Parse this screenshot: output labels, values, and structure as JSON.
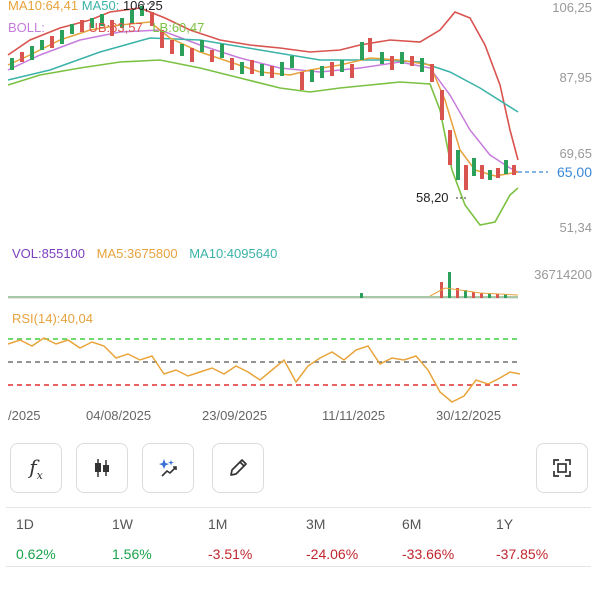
{
  "legend_price": {
    "ma10": "MA10:64,41",
    "ma50": "MA50:",
    "high_marker": "106,25",
    "boll": "BOLL:",
    "ub": "UB:63,57",
    "lb": "LB:60,47"
  },
  "price_axis": [
    "106,25",
    "87,95",
    "69,65",
    "65,00",
    "51,34"
  ],
  "low_marker": "58,20",
  "volume_legend": {
    "vol": "VOL:855100",
    "ma5": "MA5:3675800",
    "ma10": "MA10:4095640"
  },
  "volume_axis": "36714200",
  "rsi_legend": "RSI(14):40,04",
  "dates": [
    "/2025",
    "04/08/2025",
    "23/09/2025",
    "11/11/2025",
    "30/12/2025"
  ],
  "toolbar": [
    {
      "name": "indicator-fx-icon",
      "glyph": "fx"
    },
    {
      "name": "candlestick-icon",
      "glyph": "candles"
    },
    {
      "name": "ai-sparkle-icon",
      "glyph": "sparkle"
    },
    {
      "name": "pencil-draw-icon",
      "glyph": "pencil"
    },
    {
      "name": "fullscreen-icon",
      "glyph": "frame"
    }
  ],
  "performance": [
    {
      "label": "1D",
      "value": "0.62%",
      "trend": "up"
    },
    {
      "label": "1W",
      "value": "1.56%",
      "trend": "up"
    },
    {
      "label": "1M",
      "value": "-3.51%",
      "trend": "down"
    },
    {
      "label": "3M",
      "value": "-24.06%",
      "trend": "down"
    },
    {
      "label": "6M",
      "value": "-33.66%",
      "trend": "down"
    },
    {
      "label": "1Y",
      "value": "-37.85%",
      "trend": "down"
    }
  ],
  "colors": {
    "ma10": "#e6a23c",
    "ma50": "#3bb3a8",
    "boll": "#c77ddb",
    "ub": "#d9534f",
    "lb": "#7bc142",
    "vol": "#7d3fbf",
    "rsi_line": "#e8a43a",
    "overbought": "#3ecf3e",
    "midline": "#555555",
    "oversold": "#e03030",
    "current_price": "#3a87d8"
  }
}
